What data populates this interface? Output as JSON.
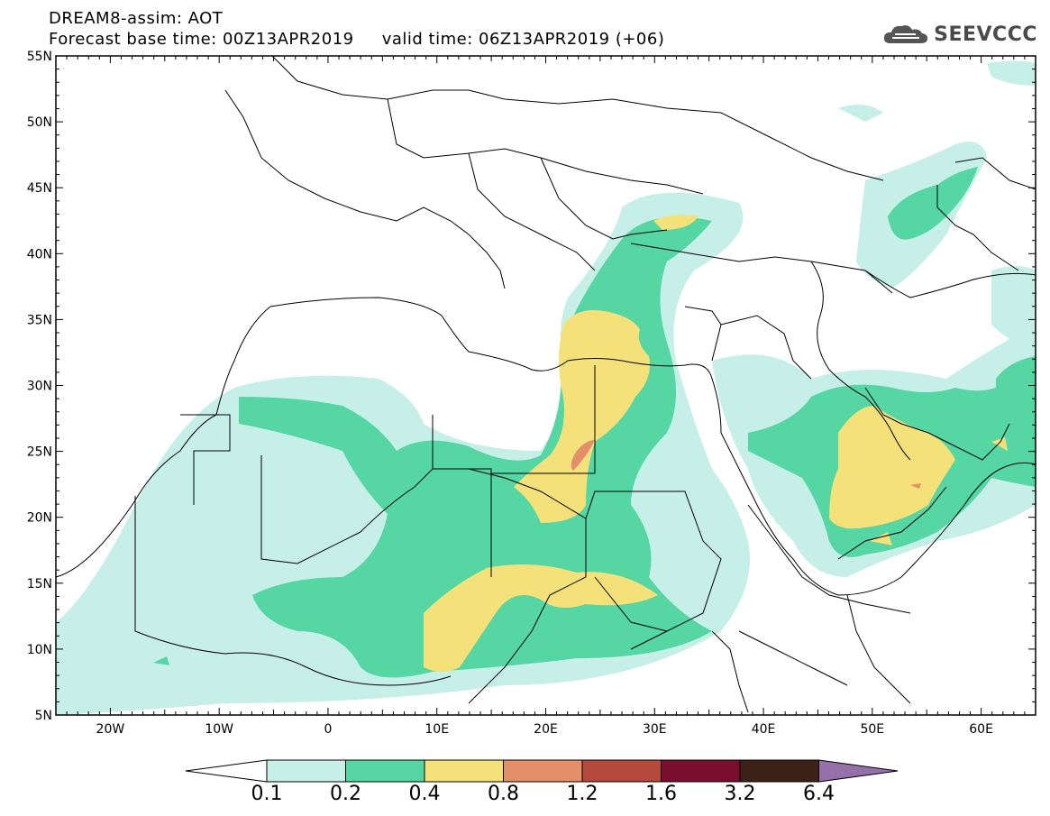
{
  "header": {
    "title_line1": "DREAM8-assim: AOT",
    "title_line2": "Forecast base time: 00Z13APR2019     valid time: 06Z13APR2019 (+06)",
    "logo_text": "SEEVCCC"
  },
  "map": {
    "lon_range": [
      -25,
      65
    ],
    "lat_range": [
      5,
      55
    ],
    "lat_labels": [
      "55N",
      "50N",
      "45N",
      "40N",
      "35N",
      "30N",
      "25N",
      "20N",
      "15N",
      "10N",
      "5N"
    ],
    "lon_labels": [
      "20W",
      "10W",
      "0",
      "10E",
      "20E",
      "30E",
      "40E",
      "50E",
      "60E"
    ]
  },
  "colorbar": {
    "colors": [
      "#c6efe8",
      "#55d6a3",
      "#f4e17a",
      "#e38f6a",
      "#b54a3c",
      "#7a0e2e",
      "#3c2216",
      "#9670a8"
    ],
    "labels": [
      "0.1",
      "0.2",
      "0.4",
      "0.8",
      "1.2",
      "1.6",
      "3.2",
      "6.4"
    ]
  }
}
